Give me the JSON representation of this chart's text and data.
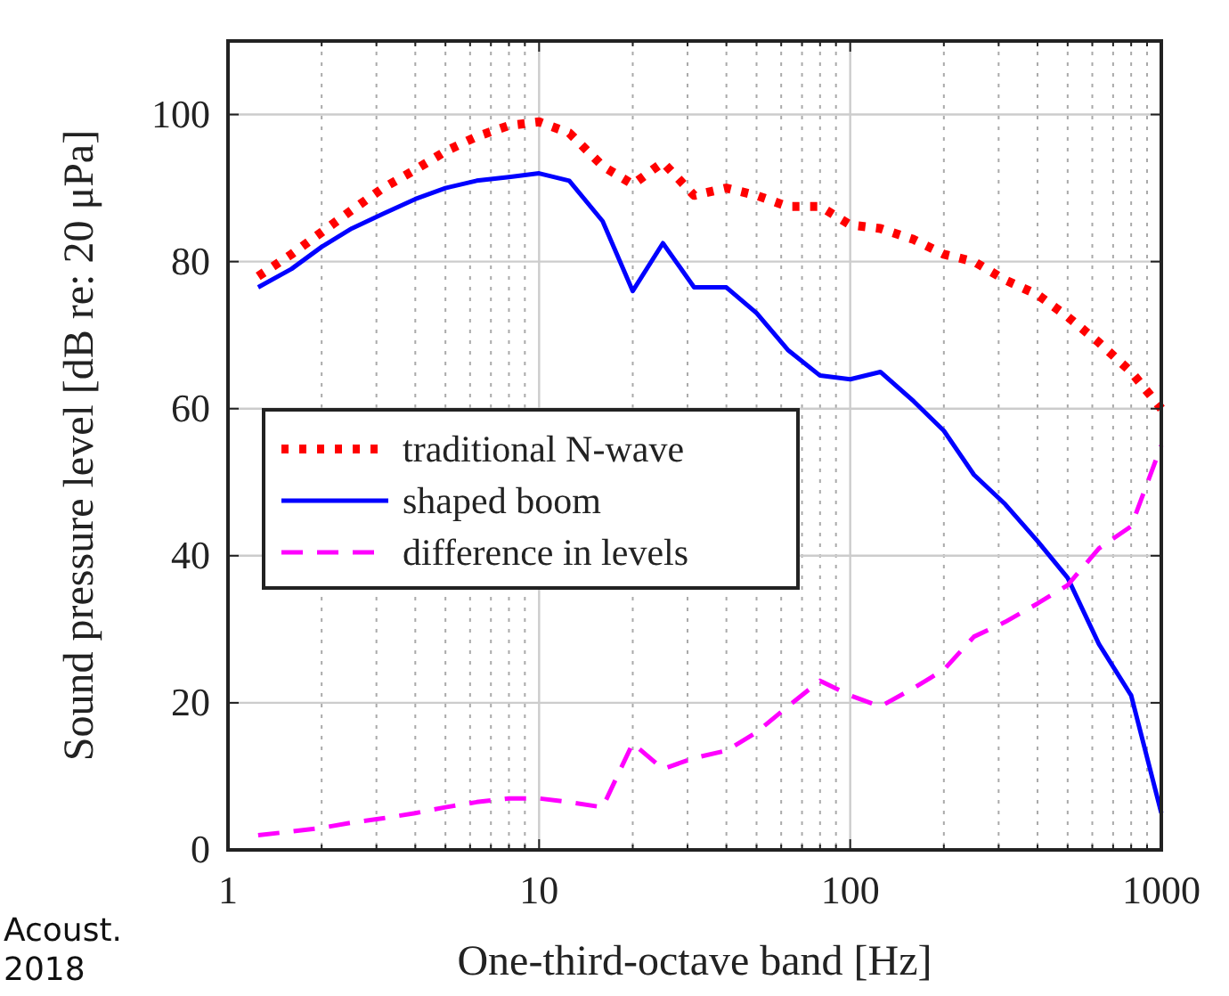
{
  "chart_data": {
    "type": "line",
    "xlabel": "One-third-octave band [Hz]",
    "ylabel": "Sound pressure level [dB re: 20 μPa]",
    "log": "x",
    "xlim": [
      1,
      1000
    ],
    "xticks": [
      1,
      10,
      100,
      1000
    ],
    "ylim": [
      0,
      110
    ],
    "yticks": [
      0,
      20,
      40,
      60,
      80,
      100
    ],
    "grid": true,
    "legend": "left",
    "annotations": [
      "Acoust.",
      "2018"
    ],
    "x": [
      1.25,
      1.6,
      2,
      2.5,
      3.15,
      4,
      5,
      6.3,
      8,
      10,
      12.5,
      16,
      20,
      25,
      31.5,
      40,
      50,
      63,
      80,
      100,
      125,
      160,
      200,
      250,
      315,
      400,
      500,
      630,
      800,
      1000
    ],
    "series": [
      {
        "name": "traditional N-wave",
        "color": "#ff0000",
        "line_style": "dotted",
        "values": [
          78,
          81,
          84,
          87,
          90,
          92.5,
          95,
          97,
          98.5,
          99,
          97.5,
          93,
          90.5,
          93.5,
          89,
          90,
          89,
          87.5,
          87.5,
          85,
          84.5,
          83,
          81,
          80,
          77.5,
          75.5,
          72.5,
          69,
          65,
          60
        ]
      },
      {
        "name": "shaped boom",
        "color": "#0000ff",
        "line_style": "solid",
        "values": [
          76.5,
          79,
          82,
          84.5,
          86.5,
          88.5,
          90,
          91,
          91.5,
          92,
          91,
          85.5,
          76,
          82.5,
          76.5,
          76.5,
          73,
          68,
          64.5,
          64,
          65,
          61,
          57,
          51,
          47,
          42,
          37,
          28,
          21,
          5
        ]
      },
      {
        "name": "difference in levels",
        "color": "#ff00ff",
        "line_style": "dashed",
        "values": [
          2,
          2.5,
          3,
          3.7,
          4.3,
          5,
          5.8,
          6.5,
          7,
          7,
          6.5,
          5.8,
          14.5,
          11,
          12.5,
          13.5,
          16,
          19.5,
          23,
          21,
          19.5,
          22,
          24.5,
          29,
          31,
          33.5,
          36,
          41,
          44,
          55
        ]
      }
    ]
  }
}
